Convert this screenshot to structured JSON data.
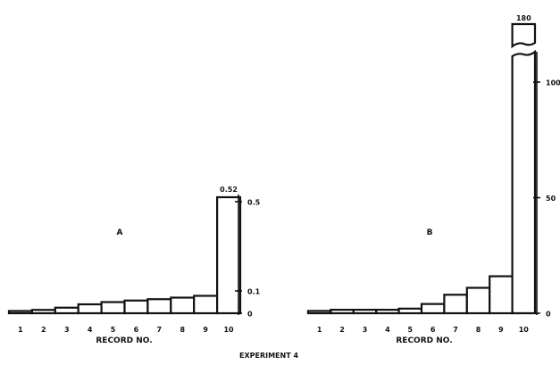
{
  "figure_caption": "EXPERIMENT 4",
  "chart_data": [
    {
      "type": "bar",
      "panel_label": "A",
      "xlabel": "RECORD NO.",
      "ylabel": "",
      "categories": [
        "1",
        "2",
        "3",
        "4",
        "5",
        "6",
        "7",
        "8",
        "9",
        "10"
      ],
      "values": [
        0.01,
        0.015,
        0.025,
        0.04,
        0.05,
        0.057,
        0.063,
        0.07,
        0.078,
        0.52
      ],
      "ylim": [
        0,
        0.5
      ],
      "y_ticks": [
        {
          "value": 0,
          "label": "0"
        },
        {
          "value": 0.1,
          "label": "0.1"
        },
        {
          "value": 0.5,
          "label": "0.5"
        }
      ],
      "annotation": "0.52",
      "axis_break": false,
      "grid": false
    },
    {
      "type": "bar",
      "panel_label": "B",
      "xlabel": "RECORD NO.",
      "ylabel": "",
      "categories": [
        "1",
        "2",
        "3",
        "4",
        "5",
        "6",
        "7",
        "8",
        "9",
        "10"
      ],
      "values": [
        1,
        1.5,
        1.5,
        1.5,
        2,
        4,
        8,
        11,
        16,
        180
      ],
      "ylim": [
        0,
        100
      ],
      "y_ticks": [
        {
          "value": 0,
          "label": "0"
        },
        {
          "value": 50,
          "label": "50"
        },
        {
          "value": 100,
          "label": "100"
        }
      ],
      "annotation": "180",
      "axis_break": true,
      "grid": false
    }
  ]
}
